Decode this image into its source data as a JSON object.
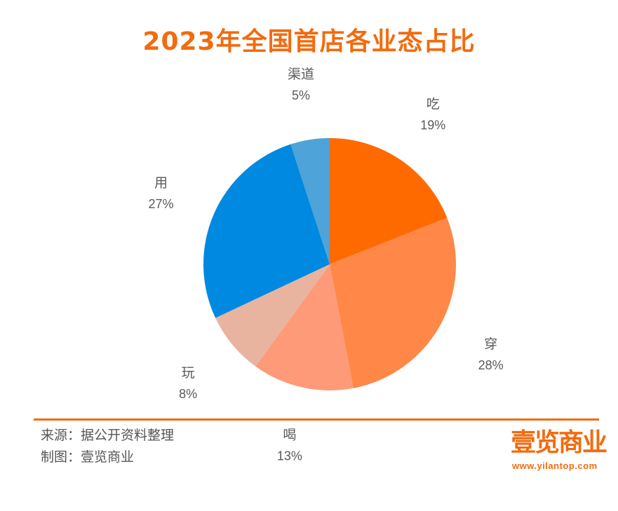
{
  "chart_data": {
    "type": "pie",
    "title": "2023年全国首店各业态占比",
    "slices": [
      {
        "label": "吃",
        "value": 19,
        "display": "19%",
        "color": "#ff6a00"
      },
      {
        "label": "穿",
        "value": 28,
        "display": "28%",
        "color": "#ff8848"
      },
      {
        "label": "喝",
        "value": 13,
        "display": "13%",
        "color": "#ff9a78"
      },
      {
        "label": "玩",
        "value": 8,
        "display": "8%",
        "color": "#e8b4a0"
      },
      {
        "label": "用",
        "value": 27,
        "display": "27%",
        "color": "#0089e0"
      },
      {
        "label": "渠道",
        "value": 5,
        "display": "5%",
        "color": "#4ea3d8"
      }
    ],
    "start_angle": "12 o'clock",
    "direction": "clockwise"
  },
  "footer": {
    "source": "来源：据公开资料整理",
    "maker": "制图：壹览商业"
  },
  "brand": {
    "logo_text": "壹览商业",
    "url": "www.yilantop.com",
    "accent_color": "#f26b0f"
  }
}
